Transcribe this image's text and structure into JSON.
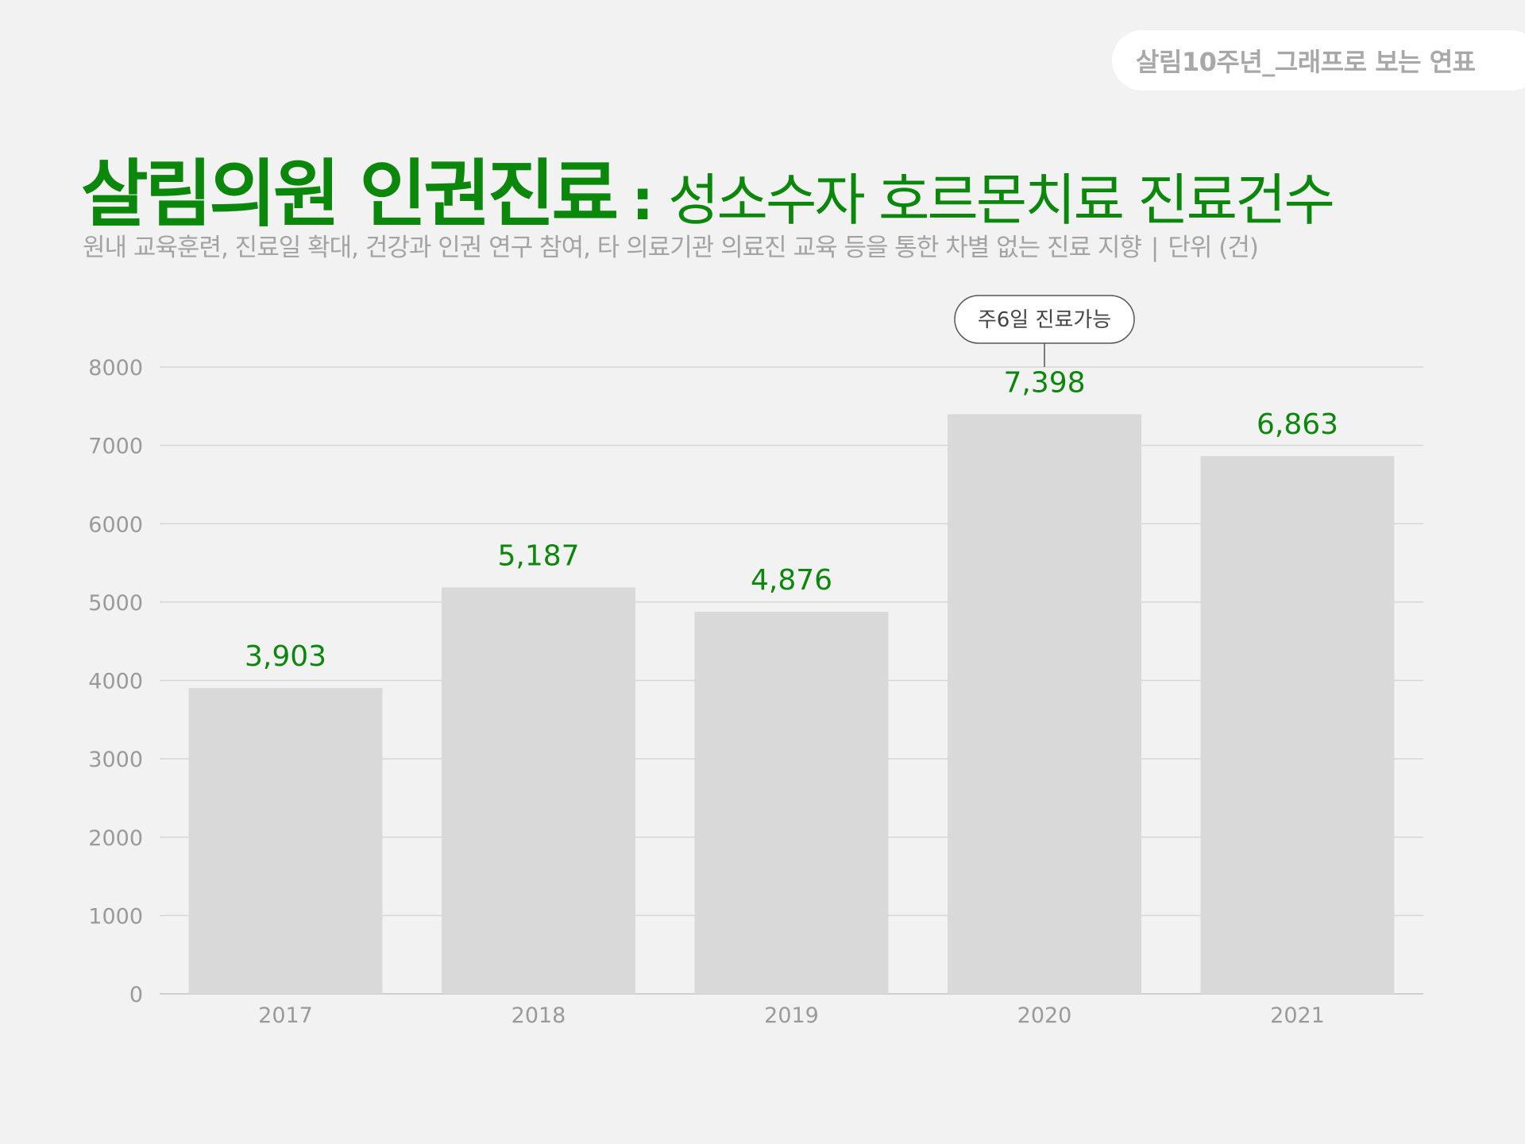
{
  "header": {
    "tag": "살림10주년_그래프로 보는 연표",
    "title_main": "살림의원 인권진료",
    "title_colon": ":",
    "title_sub": "성소수자 호르몬치료 진료건수",
    "description": "원내 교육훈련, 진료일 확대, 건강과 인권 연구 참여, 타 의료기관 의료진 교육 등을 통한 차별 없는 진료 지향",
    "separator": "|",
    "unit": "단위 (건)"
  },
  "colors": {
    "accent": "#0b870b",
    "bar": "#d9d9d9",
    "grid": "#d6d6d6",
    "axis_text": "#9a9a9a",
    "background": "#f2f2f2"
  },
  "chart_data": {
    "type": "bar",
    "categories": [
      "2017",
      "2018",
      "2019",
      "2020",
      "2021"
    ],
    "values": [
      3903,
      5187,
      4876,
      7398,
      6863
    ],
    "value_labels": [
      "3,903",
      "5,187",
      "4,876",
      "7,398",
      "6,863"
    ],
    "ylim": [
      0,
      8000
    ],
    "yticks": [
      0,
      1000,
      2000,
      3000,
      4000,
      5000,
      6000,
      7000,
      8000
    ],
    "grid": true,
    "annotation": {
      "category": "2020",
      "text": "주6일 진료가능"
    }
  }
}
